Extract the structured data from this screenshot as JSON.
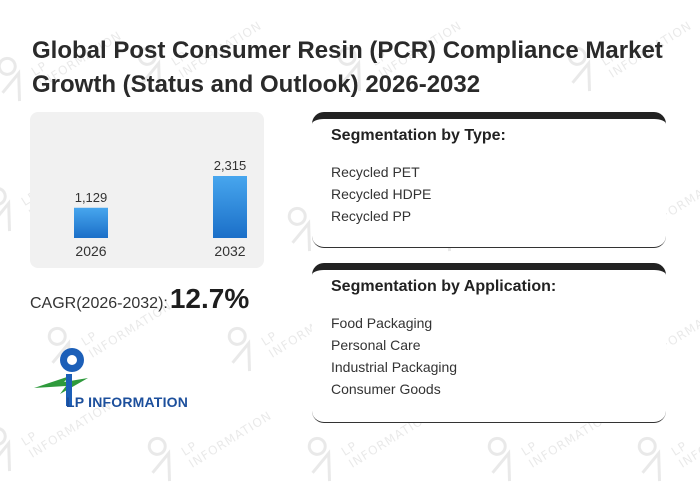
{
  "title": "Global Post Consumer Resin (PCR) Compliance Market Growth (Status and Outlook) 2026-2032",
  "chart_data": {
    "type": "bar",
    "categories": [
      "2026",
      "2032"
    ],
    "values": [
      1129,
      2315
    ],
    "value_labels": [
      "1,129",
      "2,315"
    ],
    "bar_color": "#2a8be0",
    "grid": false
  },
  "cagr": {
    "label": "CAGR(2026-2032):",
    "value": "12.7%"
  },
  "segments": {
    "type": {
      "heading": "Segmentation by Type:",
      "items": [
        "Recycled PET",
        "Recycled HDPE",
        "Recycled PP"
      ]
    },
    "application": {
      "heading": "Segmentation by Application:",
      "items": [
        "Food Packaging",
        "Personal Care",
        "Industrial Packaging",
        "Consumer Goods"
      ]
    }
  },
  "logo": {
    "text": "LP INFORMATION",
    "watermark_text": "LP INFORMATION",
    "icon": "lp-information-logo-icon",
    "colors": {
      "blue": "#1c5fb8",
      "green": "#2e9a3c"
    }
  }
}
